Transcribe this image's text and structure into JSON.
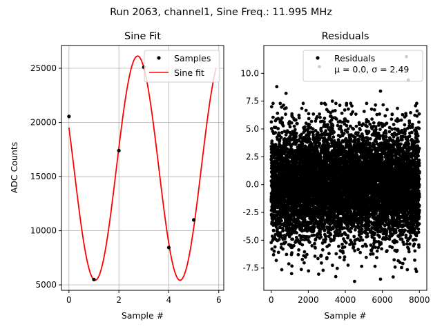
{
  "figure": {
    "suptitle": "Run 2063, channel1, Sine Freq.: 11.995 MHz"
  },
  "chart_data": [
    {
      "type": "line",
      "title": "Sine Fit",
      "xlabel": "Sample #",
      "ylabel": "ADC Counts",
      "xlim": [
        -0.3,
        6.2
      ],
      "ylim": [
        4500,
        27100
      ],
      "xticks": [
        0,
        2,
        4,
        6
      ],
      "yticks": [
        5000,
        10000,
        15000,
        20000,
        25000
      ],
      "grid": true,
      "legend_position": "upper right",
      "samples": {
        "name": "Samples",
        "color": "#000000",
        "x": [
          0,
          1,
          2,
          3,
          4,
          5
        ],
        "y": [
          20550,
          5500,
          17400,
          25100,
          8450,
          11000
        ]
      },
      "fit": {
        "name": "Sine fit",
        "color": "#ff0000",
        "offset": 15780,
        "amplitude": 10350,
        "period": 3.4,
        "peak_x": 2.75,
        "x_range": [
          0,
          5.9
        ]
      }
    },
    {
      "type": "scatter",
      "title": "Residuals",
      "xlabel": "Sample #",
      "ylabel": "",
      "xlim": [
        -400,
        8400
      ],
      "ylim": [
        -9.5,
        12.5
      ],
      "xticks": [
        0,
        2000,
        4000,
        6000,
        8000
      ],
      "yticks": [
        -7.5,
        -5.0,
        -2.5,
        0.0,
        2.5,
        5.0,
        7.5,
        10.0
      ],
      "grid": false,
      "legend_position": "upper right",
      "series": {
        "name": "Residuals",
        "stats_label": "μ = 0.0, σ = 2.49",
        "color": "#000000",
        "n_points": 8000,
        "mean": 0.0,
        "std": 2.49,
        "x_range": [
          0,
          8000
        ]
      },
      "highlighted_points": [
        {
          "x": 300,
          "y": 8.8
        },
        {
          "x": 800,
          "y": 8.2
        },
        {
          "x": 2600,
          "y": 10.6
        },
        {
          "x": 3300,
          "y": 7.5
        },
        {
          "x": 7300,
          "y": 11.5
        },
        {
          "x": 7400,
          "y": 9.4
        },
        {
          "x": 5900,
          "y": 8.4
        },
        {
          "x": 4500,
          "y": -8.7
        },
        {
          "x": 5900,
          "y": -8.5
        },
        {
          "x": 1100,
          "y": -8.0
        },
        {
          "x": 2800,
          "y": -7.7
        },
        {
          "x": 7800,
          "y": -7.6
        }
      ]
    }
  ]
}
